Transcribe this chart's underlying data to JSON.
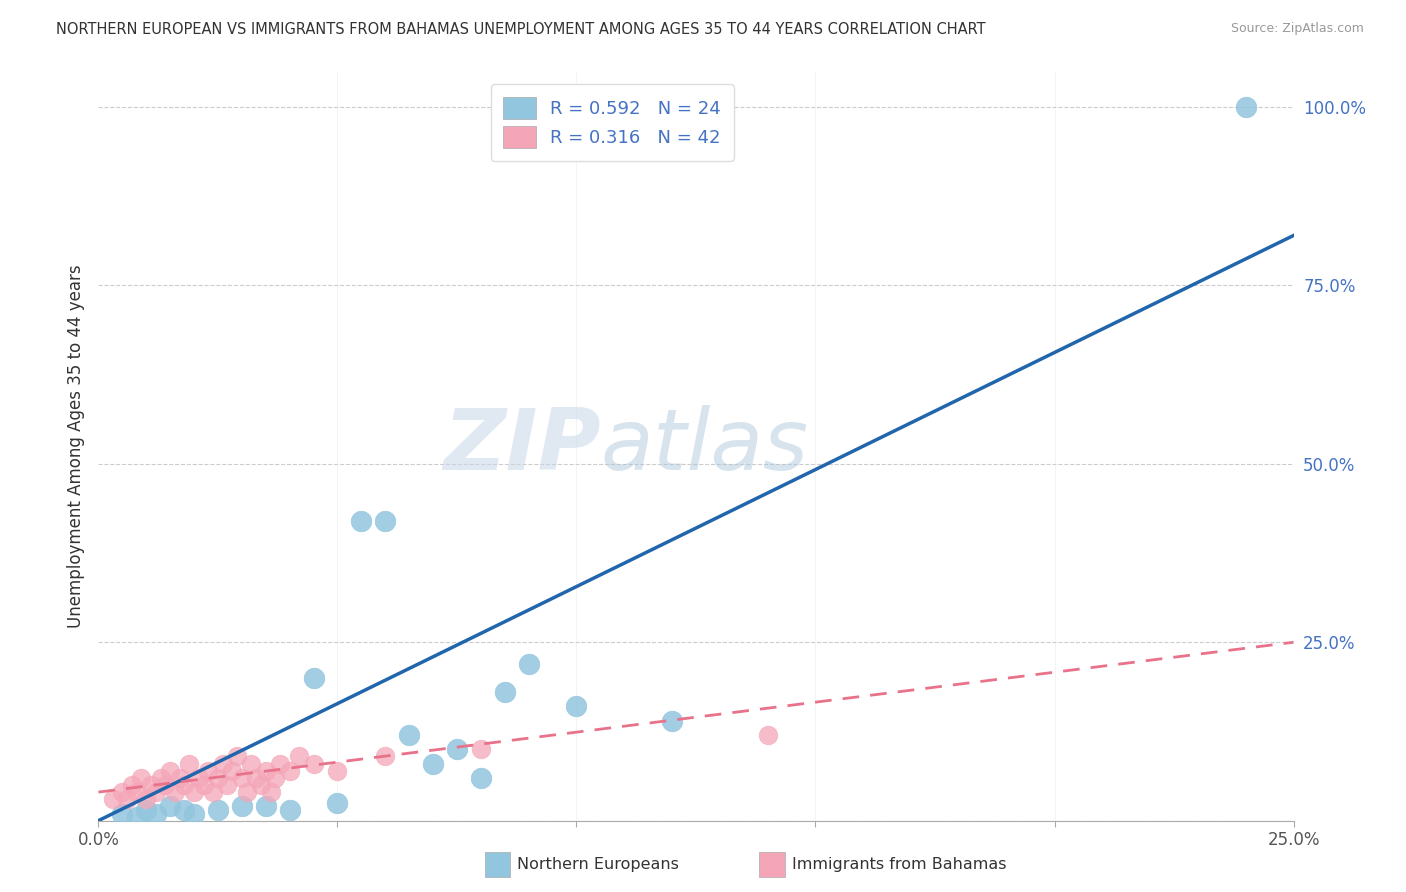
{
  "title": "NORTHERN EUROPEAN VS IMMIGRANTS FROM BAHAMAS UNEMPLOYMENT AMONG AGES 35 TO 44 YEARS CORRELATION CHART",
  "source": "Source: ZipAtlas.com",
  "ylabel": "Unemployment Among Ages 35 to 44 years",
  "xlim": [
    0.0,
    0.25
  ],
  "ylim": [
    0.0,
    1.05
  ],
  "xticks": [
    0.0,
    0.05,
    0.1,
    0.15,
    0.2,
    0.25
  ],
  "xticklabels": [
    "0.0%",
    "",
    "",
    "",
    "",
    "25.0%"
  ],
  "yticks": [
    0.25,
    0.5,
    0.75,
    1.0
  ],
  "yticklabels": [
    "25.0%",
    "50.0%",
    "75.0%",
    "100.0%"
  ],
  "blue_R": 0.592,
  "blue_N": 24,
  "pink_R": 0.316,
  "pink_N": 42,
  "blue_color": "#92C5DE",
  "pink_color": "#F4A6B8",
  "blue_line_color": "#2166AC",
  "pink_line_color": "#E8728A",
  "grid_color": "#CCCCCC",
  "watermark_zip": "ZIP",
  "watermark_atlas": "atlas",
  "blue_scatter_x": [
    0.005,
    0.008,
    0.01,
    0.012,
    0.015,
    0.018,
    0.02,
    0.025,
    0.03,
    0.035,
    0.04,
    0.045,
    0.05,
    0.055,
    0.06,
    0.065,
    0.07,
    0.075,
    0.08,
    0.085,
    0.09,
    0.1,
    0.12,
    0.24
  ],
  "blue_scatter_y": [
    0.01,
    0.005,
    0.015,
    0.01,
    0.02,
    0.015,
    0.01,
    0.015,
    0.02,
    0.02,
    0.015,
    0.2,
    0.025,
    0.42,
    0.42,
    0.12,
    0.08,
    0.1,
    0.06,
    0.18,
    0.22,
    0.16,
    0.14,
    1.0
  ],
  "pink_scatter_x": [
    0.003,
    0.005,
    0.006,
    0.007,
    0.008,
    0.009,
    0.01,
    0.011,
    0.012,
    0.013,
    0.014,
    0.015,
    0.016,
    0.017,
    0.018,
    0.019,
    0.02,
    0.021,
    0.022,
    0.023,
    0.024,
    0.025,
    0.026,
    0.027,
    0.028,
    0.029,
    0.03,
    0.031,
    0.032,
    0.033,
    0.034,
    0.035,
    0.036,
    0.037,
    0.038,
    0.04,
    0.042,
    0.045,
    0.05,
    0.06,
    0.08,
    0.14
  ],
  "pink_scatter_y": [
    0.03,
    0.04,
    0.03,
    0.05,
    0.04,
    0.06,
    0.03,
    0.05,
    0.04,
    0.06,
    0.05,
    0.07,
    0.04,
    0.06,
    0.05,
    0.08,
    0.04,
    0.06,
    0.05,
    0.07,
    0.04,
    0.06,
    0.08,
    0.05,
    0.07,
    0.09,
    0.06,
    0.04,
    0.08,
    0.06,
    0.05,
    0.07,
    0.04,
    0.06,
    0.08,
    0.07,
    0.09,
    0.08,
    0.07,
    0.09,
    0.1,
    0.12
  ],
  "blue_line_x": [
    0.0,
    0.25
  ],
  "blue_line_y": [
    0.0,
    0.82
  ],
  "pink_line_x": [
    0.0,
    0.25
  ],
  "pink_line_y": [
    0.04,
    0.25
  ],
  "figsize": [
    14.06,
    8.92
  ],
  "dpi": 100
}
